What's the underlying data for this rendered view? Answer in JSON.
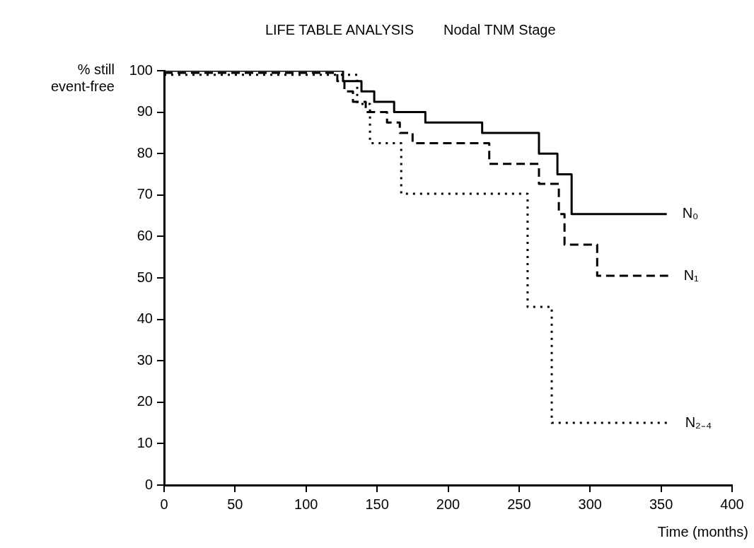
{
  "chart_data": {
    "type": "step",
    "title": "LIFE TABLE ANALYSIS",
    "subtitle": "Nodal TNM Stage",
    "xlabel": "Time (months)",
    "ylabel": "% still event-free",
    "xlim": [
      0,
      400
    ],
    "xticks": [
      0,
      50,
      100,
      150,
      200,
      250,
      300,
      350,
      400
    ],
    "ylim": [
      0,
      100
    ],
    "yticks": [
      0,
      10,
      20,
      30,
      40,
      50,
      60,
      70,
      80,
      90,
      100
    ],
    "grid": false,
    "legend": false,
    "marker": "none",
    "series": [
      {
        "name": "N₀",
        "color": "#000000",
        "line_style": "solid",
        "x": [
          0,
          126,
          139,
          148,
          162,
          184,
          224,
          264,
          277,
          287,
          354
        ],
        "values": [
          100,
          97.5,
          95,
          92.5,
          90,
          87.5,
          85,
          80,
          75,
          65.4,
          65.4
        ]
      },
      {
        "name": "N₁",
        "color": "#000000",
        "line_style": "dashed",
        "x": [
          0,
          122,
          127,
          133,
          142,
          157,
          166,
          175,
          229,
          264,
          278,
          282,
          305,
          355
        ],
        "values": [
          99.5,
          97.5,
          95,
          92.5,
          90,
          87.5,
          85,
          82.5,
          77.5,
          72.7,
          65.4,
          58,
          50.5,
          50.5
        ]
      },
      {
        "name": "N₂₋₄",
        "color": "#000000",
        "line_style": "dotted",
        "x": [
          0,
          136,
          145,
          167,
          256,
          273,
          356
        ],
        "values": [
          99,
          92,
          82.5,
          70.3,
          43,
          15,
          15
        ]
      }
    ]
  }
}
